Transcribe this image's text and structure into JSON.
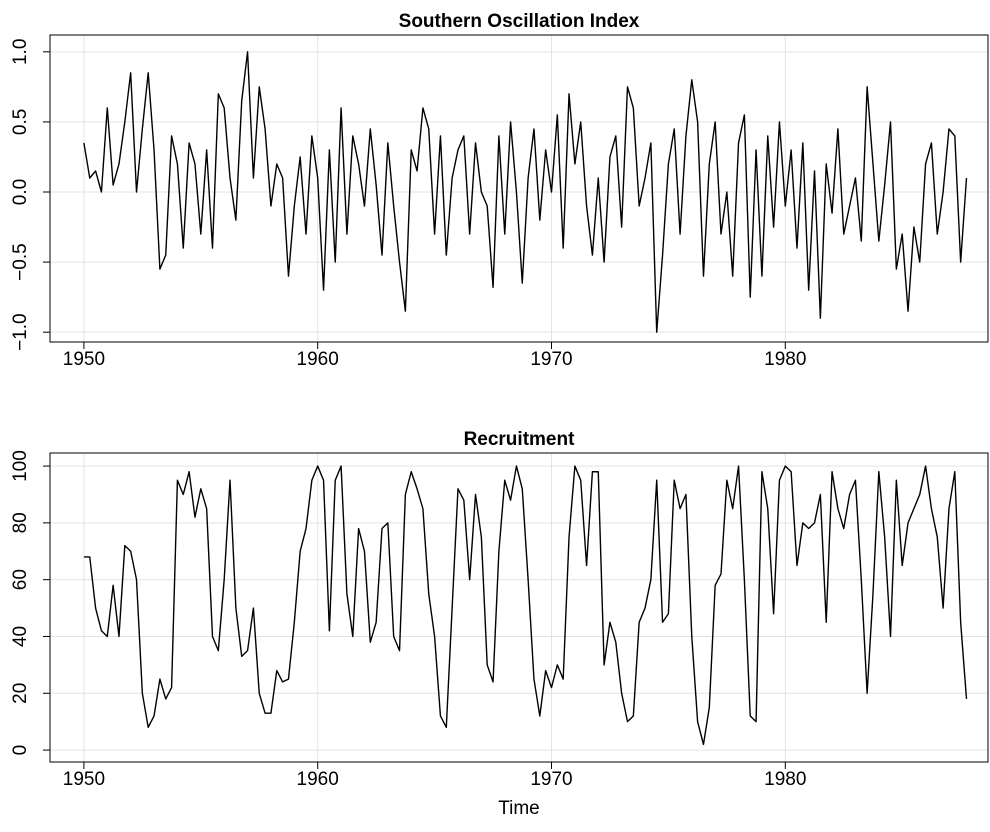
{
  "chart_data": [
    {
      "type": "line",
      "title": "Southern Oscillation Index",
      "grid": true,
      "color": "#000000",
      "xlim": [
        1948.55,
        1988.67
      ],
      "xticks": [
        1950,
        1960,
        1970,
        1980
      ],
      "ylim": [
        -1.07,
        1.12
      ],
      "yticks": [
        {
          "value": -1,
          "label": "−1.0"
        },
        {
          "value": -0.5,
          "label": "−0.5"
        },
        {
          "value": 0,
          "label": "0.0"
        },
        0.5,
        {
          "value": 1,
          "label": "1.0"
        }
      ],
      "x": [
        1950,
        1950.25,
        1950.5,
        1950.75,
        1951,
        1951.25,
        1951.5,
        1951.75,
        1952,
        1952.25,
        1952.5,
        1952.75,
        1953,
        1953.25,
        1953.5,
        1953.75,
        1954,
        1954.25,
        1954.5,
        1954.75,
        1955,
        1955.25,
        1955.5,
        1955.75,
        1956,
        1956.25,
        1956.5,
        1956.75,
        1957,
        1957.25,
        1957.5,
        1957.75,
        1958,
        1958.25,
        1958.5,
        1958.75,
        1959,
        1959.25,
        1959.5,
        1959.75,
        1960,
        1960.25,
        1960.5,
        1960.75,
        1961,
        1961.25,
        1961.5,
        1961.75,
        1962,
        1962.25,
        1962.5,
        1962.75,
        1963,
        1963.25,
        1963.5,
        1963.75,
        1964,
        1964.25,
        1964.5,
        1964.75,
        1965,
        1965.25,
        1965.5,
        1965.75,
        1966,
        1966.25,
        1966.5,
        1966.75,
        1967,
        1967.25,
        1967.5,
        1967.75,
        1968,
        1968.25,
        1968.5,
        1968.75,
        1969,
        1969.25,
        1969.5,
        1969.75,
        1970,
        1970.25,
        1970.5,
        1970.75,
        1971,
        1971.25,
        1971.5,
        1971.75,
        1972,
        1972.25,
        1972.5,
        1972.75,
        1973,
        1973.25,
        1973.5,
        1973.75,
        1974,
        1974.25,
        1974.5,
        1974.75,
        1975,
        1975.25,
        1975.5,
        1975.75,
        1976,
        1976.25,
        1976.5,
        1976.75,
        1977,
        1977.25,
        1977.5,
        1977.75,
        1978,
        1978.25,
        1978.5,
        1978.75,
        1979,
        1979.25,
        1979.5,
        1979.75,
        1980,
        1980.25,
        1980.5,
        1980.75,
        1981,
        1981.25,
        1981.5,
        1981.75,
        1982,
        1982.25,
        1982.5,
        1982.75,
        1983,
        1983.25,
        1983.5,
        1983.75,
        1984,
        1984.25,
        1984.5,
        1984.75,
        1985,
        1985.25,
        1985.5,
        1985.75,
        1986,
        1986.25,
        1986.5,
        1986.75,
        1987,
        1987.25,
        1987.5,
        1987.75
      ],
      "values": [
        0.35,
        0.1,
        0.15,
        0.0,
        0.6,
        0.05,
        0.2,
        0.5,
        0.85,
        0.0,
        0.45,
        0.85,
        0.3,
        -0.55,
        -0.45,
        0.4,
        0.2,
        -0.4,
        0.35,
        0.2,
        -0.3,
        0.3,
        -0.4,
        0.7,
        0.6,
        0.1,
        -0.2,
        0.65,
        1.0,
        0.1,
        0.75,
        0.45,
        -0.1,
        0.2,
        0.1,
        -0.6,
        -0.1,
        0.25,
        -0.3,
        0.4,
        0.1,
        -0.7,
        0.3,
        -0.5,
        0.6,
        -0.3,
        0.4,
        0.2,
        -0.1,
        0.45,
        0.05,
        -0.45,
        0.35,
        -0.1,
        -0.5,
        -0.85,
        0.3,
        0.15,
        0.6,
        0.45,
        -0.3,
        0.4,
        -0.45,
        0.1,
        0.3,
        0.4,
        -0.3,
        0.35,
        0.0,
        -0.1,
        -0.68,
        0.4,
        -0.3,
        0.5,
        0.0,
        -0.65,
        0.1,
        0.45,
        -0.2,
        0.3,
        0.0,
        0.55,
        -0.4,
        0.7,
        0.2,
        0.5,
        -0.1,
        -0.45,
        0.1,
        -0.5,
        0.25,
        0.4,
        -0.25,
        0.75,
        0.6,
        -0.1,
        0.1,
        0.35,
        -1.0,
        -0.45,
        0.2,
        0.45,
        -0.3,
        0.4,
        0.8,
        0.5,
        -0.6,
        0.2,
        0.5,
        -0.3,
        0.0,
        -0.6,
        0.35,
        0.55,
        -0.75,
        0.3,
        -0.6,
        0.4,
        -0.25,
        0.5,
        -0.1,
        0.3,
        -0.4,
        0.35,
        -0.7,
        0.15,
        -0.9,
        0.2,
        -0.15,
        0.45,
        -0.3,
        -0.1,
        0.1,
        -0.35,
        0.75,
        0.2,
        -0.35,
        0.05,
        0.5,
        -0.55,
        -0.3,
        -0.85,
        -0.25,
        -0.5,
        0.2,
        0.35,
        -0.3,
        0.0,
        0.45,
        0.4,
        -0.5,
        0.1
      ]
    },
    {
      "type": "line",
      "title": "Recruitment",
      "xlabel": "Time",
      "grid": true,
      "color": "#000000",
      "xlim": [
        1948.55,
        1988.67
      ],
      "xticks": [
        1950,
        1960,
        1970,
        1980
      ],
      "ylim": [
        -4.2,
        104.6
      ],
      "yticks": [
        0,
        20,
        40,
        60,
        80,
        100
      ],
      "x": [
        1950,
        1950.25,
        1950.5,
        1950.75,
        1951,
        1951.25,
        1951.5,
        1951.75,
        1952,
        1952.25,
        1952.5,
        1952.75,
        1953,
        1953.25,
        1953.5,
        1953.75,
        1954,
        1954.25,
        1954.5,
        1954.75,
        1955,
        1955.25,
        1955.5,
        1955.75,
        1956,
        1956.25,
        1956.5,
        1956.75,
        1957,
        1957.25,
        1957.5,
        1957.75,
        1958,
        1958.25,
        1958.5,
        1958.75,
        1959,
        1959.25,
        1959.5,
        1959.75,
        1960,
        1960.25,
        1960.5,
        1960.75,
        1961,
        1961.25,
        1961.5,
        1961.75,
        1962,
        1962.25,
        1962.5,
        1962.75,
        1963,
        1963.25,
        1963.5,
        1963.75,
        1964,
        1964.25,
        1964.5,
        1964.75,
        1965,
        1965.25,
        1965.5,
        1965.75,
        1966,
        1966.25,
        1966.5,
        1966.75,
        1967,
        1967.25,
        1967.5,
        1967.75,
        1968,
        1968.25,
        1968.5,
        1968.75,
        1969,
        1969.25,
        1969.5,
        1969.75,
        1970,
        1970.25,
        1970.5,
        1970.75,
        1971,
        1971.25,
        1971.5,
        1971.75,
        1972,
        1972.25,
        1972.5,
        1972.75,
        1973,
        1973.25,
        1973.5,
        1973.75,
        1974,
        1974.25,
        1974.5,
        1974.75,
        1975,
        1975.25,
        1975.5,
        1975.75,
        1976,
        1976.25,
        1976.5,
        1976.75,
        1977,
        1977.25,
        1977.5,
        1977.75,
        1978,
        1978.25,
        1978.5,
        1978.75,
        1979,
        1979.25,
        1979.5,
        1979.75,
        1980,
        1980.25,
        1980.5,
        1980.75,
        1981,
        1981.25,
        1981.5,
        1981.75,
        1982,
        1982.25,
        1982.5,
        1982.75,
        1983,
        1983.25,
        1983.5,
        1983.75,
        1984,
        1984.25,
        1984.5,
        1984.75,
        1985,
        1985.25,
        1985.5,
        1985.75,
        1986,
        1986.25,
        1986.5,
        1986.75,
        1987,
        1987.25,
        1987.5,
        1987.75
      ],
      "values": [
        68,
        68,
        50,
        42,
        40,
        58,
        40,
        72,
        70,
        60,
        20,
        8,
        12,
        25,
        18,
        22,
        95,
        90,
        98,
        82,
        92,
        85,
        40,
        35,
        60,
        95,
        50,
        33,
        35,
        50,
        20,
        13,
        13,
        28,
        24,
        25,
        45,
        70,
        78,
        95,
        100,
        95,
        42,
        95,
        100,
        55,
        40,
        78,
        70,
        38,
        45,
        78,
        80,
        40,
        35,
        90,
        98,
        92,
        85,
        55,
        40,
        12,
        8,
        50,
        92,
        88,
        60,
        90,
        75,
        30,
        24,
        70,
        95,
        88,
        100,
        92,
        60,
        25,
        12,
        28,
        22,
        30,
        25,
        75,
        100,
        95,
        65,
        98,
        98,
        30,
        45,
        38,
        20,
        10,
        12,
        45,
        50,
        60,
        95,
        45,
        48,
        95,
        85,
        90,
        40,
        10,
        2,
        15,
        58,
        62,
        95,
        85,
        100,
        60,
        12,
        10,
        98,
        85,
        48,
        95,
        100,
        98,
        65,
        80,
        78,
        80,
        90,
        45,
        98,
        85,
        78,
        90,
        95,
        60,
        20,
        55,
        98,
        75,
        40,
        95,
        65,
        80,
        85,
        90,
        100,
        85,
        75,
        50,
        85,
        98,
        45,
        18
      ]
    }
  ]
}
